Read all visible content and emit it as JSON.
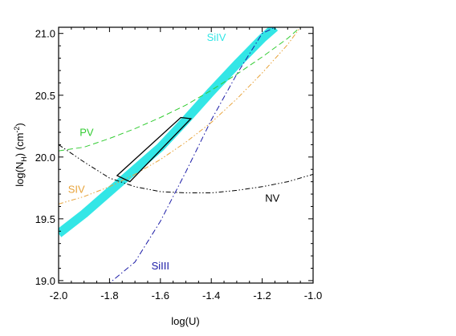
{
  "chart_data": {
    "type": "line",
    "xlabel": "log(U)",
    "ylabel": {
      "pre": "log(N",
      "sub": "H",
      "mid": ") (cm",
      "sup": "-2",
      "post": ")"
    },
    "xlim": [
      -2.0,
      -1.0
    ],
    "ylim": [
      18.98,
      21.05
    ],
    "xticks": [
      -2.0,
      -1.8,
      -1.6,
      -1.4,
      -1.2,
      -1.0
    ],
    "xtick_labels": [
      "-2.0",
      "-1.8",
      "-1.6",
      "-1.4",
      "-1.2",
      "-1.0"
    ],
    "yticks": [
      19.0,
      19.5,
      20.0,
      20.5,
      21.0
    ],
    "ytick_labels": [
      "19.0",
      "19.5",
      "20.0",
      "20.5",
      "21.0"
    ],
    "grid": false,
    "series": [
      {
        "name": "SiIV",
        "color": "#33e6e6",
        "style": "band",
        "x": [
          -2.0,
          -1.9,
          -1.8,
          -1.7,
          -1.6,
          -1.5,
          -1.4,
          -1.3,
          -1.2,
          -1.15
        ],
        "y": [
          19.38,
          19.54,
          19.72,
          19.9,
          20.08,
          20.3,
          20.53,
          20.75,
          20.96,
          21.05
        ]
      },
      {
        "name": "PV",
        "color": "#33cc33",
        "style": "dashed",
        "x": [
          -2.0,
          -1.9,
          -1.8,
          -1.7,
          -1.6,
          -1.5,
          -1.4,
          -1.3,
          -1.2,
          -1.1,
          -1.05
        ],
        "y": [
          20.05,
          20.08,
          20.15,
          20.23,
          20.32,
          20.42,
          20.54,
          20.67,
          20.81,
          20.96,
          21.05
        ]
      },
      {
        "name": "SIV",
        "color": "#e8a33a",
        "style": "dash-dot-dot",
        "x": [
          -2.0,
          -1.9,
          -1.8,
          -1.7,
          -1.6,
          -1.5,
          -1.4,
          -1.3,
          -1.2,
          -1.1,
          -1.05
        ],
        "y": [
          19.62,
          19.68,
          19.76,
          19.86,
          19.98,
          20.12,
          20.28,
          20.47,
          20.68,
          20.91,
          21.05
        ]
      },
      {
        "name": "NV",
        "color": "#000000",
        "style": "dash-dot-dot",
        "x": [
          -2.0,
          -1.9,
          -1.8,
          -1.7,
          -1.6,
          -1.5,
          -1.4,
          -1.3,
          -1.2,
          -1.1,
          -1.0
        ],
        "y": [
          20.1,
          19.96,
          19.83,
          19.76,
          19.72,
          19.71,
          19.71,
          19.73,
          19.76,
          19.8,
          19.86
        ]
      },
      {
        "name": "SiIII",
        "color": "#1a1aa6",
        "style": "dash-dot",
        "x": [
          -2.0,
          -1.9,
          -1.8,
          -1.7,
          -1.6,
          -1.5,
          -1.4,
          -1.3,
          -1.2,
          -1.15
        ],
        "y": [
          18.98,
          18.98,
          18.98,
          19.15,
          19.48,
          19.88,
          20.3,
          20.67,
          21.0,
          21.05
        ]
      }
    ],
    "box": {
      "x": [
        -1.77,
        -1.52,
        -1.48,
        -1.72
      ],
      "y": [
        19.85,
        20.32,
        20.31,
        19.8
      ]
    }
  }
}
